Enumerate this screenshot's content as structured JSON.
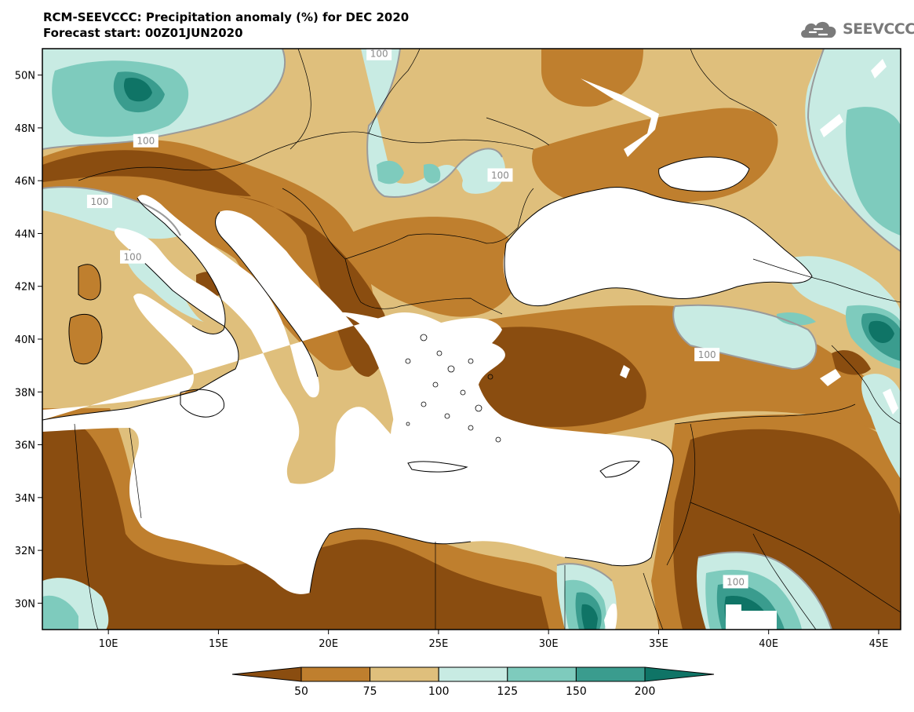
{
  "header": {
    "title_line1": "RCM-SEEVCCC: Precipitation anomaly (%) for DEC 2020",
    "title_line2": "Forecast start: 00Z01JUN2020",
    "logo_text": "SEEVCCC"
  },
  "map": {
    "lon_range": [
      7,
      46
    ],
    "lat_range": [
      29,
      51
    ],
    "lat_ticks": [
      {
        "value": 30,
        "label": "30N"
      },
      {
        "value": 32,
        "label": "32N"
      },
      {
        "value": 34,
        "label": "34N"
      },
      {
        "value": 36,
        "label": "36N"
      },
      {
        "value": 38,
        "label": "38N"
      },
      {
        "value": 40,
        "label": "40N"
      },
      {
        "value": 42,
        "label": "42N"
      },
      {
        "value": 44,
        "label": "44N"
      },
      {
        "value": 46,
        "label": "46N"
      },
      {
        "value": 48,
        "label": "48N"
      },
      {
        "value": 50,
        "label": "50N"
      }
    ],
    "lon_ticks": [
      {
        "value": 10,
        "label": "10E"
      },
      {
        "value": 15,
        "label": "15E"
      },
      {
        "value": 20,
        "label": "20E"
      },
      {
        "value": 25,
        "label": "25E"
      },
      {
        "value": 30,
        "label": "30E"
      },
      {
        "value": 35,
        "label": "35E"
      },
      {
        "value": 40,
        "label": "40E"
      },
      {
        "value": 45,
        "label": "45E"
      }
    ],
    "contour_labels": [
      {
        "text": "100",
        "lon": 22.3,
        "lat": 50.8
      },
      {
        "text": "100",
        "lon": 11.7,
        "lat": 47.5
      },
      {
        "text": "100",
        "lon": 9.6,
        "lat": 45.2
      },
      {
        "text": "100",
        "lon": 11.1,
        "lat": 43.1
      },
      {
        "text": "100",
        "lon": 27.8,
        "lat": 46.2
      },
      {
        "text": "100",
        "lon": 37.2,
        "lat": 39.4
      },
      {
        "text": "100",
        "lon": 38.5,
        "lat": 30.8
      }
    ]
  },
  "colors": {
    "lt50": "#8a4d10",
    "c50_75": "#bf7f2e",
    "c75_100": "#dfbf7c",
    "c100_125": "#c8ebe3",
    "c125_150": "#7ecbbd",
    "c150_200": "#3a9c8e",
    "gt200": "#0f7466",
    "sea": "#ffffff"
  },
  "legend": {
    "bins": [
      {
        "color": "#8a4d10"
      },
      {
        "color": "#bf7f2e"
      },
      {
        "color": "#dfbf7c"
      },
      {
        "color": "#c8ebe3"
      },
      {
        "color": "#7ecbbd"
      },
      {
        "color": "#3a9c8e"
      },
      {
        "color": "#0f7466"
      }
    ],
    "labels": [
      "50",
      "75",
      "100",
      "125",
      "150",
      "200"
    ]
  }
}
